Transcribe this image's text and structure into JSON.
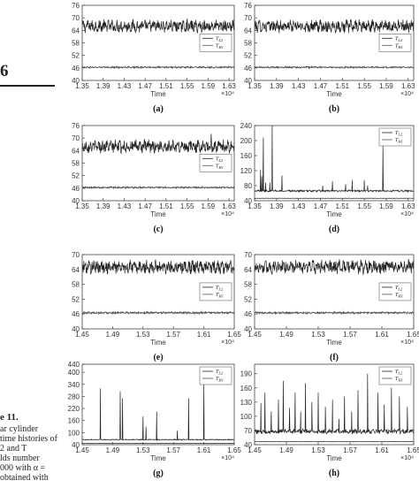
{
  "side": {
    "figure_number": "6",
    "caption_title": "e 11.",
    "caption_lines": [
      "ar cylinder",
      "time histories of",
      "2 and T",
      "lds number",
      "000 with α =",
      "obtained with"
    ]
  },
  "chart_data": [
    {
      "type": "line",
      "panel_label": "(a)",
      "xlabel": "Time",
      "x_multiplier": "×10⁴",
      "x_ticks": [
        "1.35",
        "1.39",
        "1.43",
        "1.47",
        "1.51",
        "1.55",
        "1.59",
        "1.63"
      ],
      "xlim": [
        1.35,
        1.64
      ],
      "y_ticks": [
        "40",
        "46",
        "52",
        "58",
        "64",
        "70",
        "76"
      ],
      "ylim": [
        40,
        76
      ],
      "series": [
        {
          "name": "T_L2",
          "mean": 66,
          "amplitude": 2.5,
          "spikes": []
        },
        {
          "name": "T_H1",
          "mean": 46.3,
          "amplitude": 0.3,
          "spikes": []
        }
      ],
      "legend": [
        {
          "base": "T",
          "sub": "L2"
        },
        {
          "base": "T",
          "sub": "H1"
        }
      ],
      "legend_position": "center-right"
    },
    {
      "type": "line",
      "panel_label": "(b)",
      "xlabel": "Time",
      "x_multiplier": "×10⁴",
      "x_ticks": [
        "1.35",
        "1.39",
        "1.43",
        "1.47",
        "1.51",
        "1.55",
        "1.59",
        "1.63"
      ],
      "xlim": [
        1.35,
        1.64
      ],
      "y_ticks": [
        "40",
        "46",
        "52",
        "58",
        "64",
        "70",
        "76"
      ],
      "ylim": [
        40,
        76
      ],
      "series": [
        {
          "name": "T_L2",
          "mean": 66,
          "amplitude": 2.5,
          "spikes": []
        },
        {
          "name": "T_H1",
          "mean": 46.3,
          "amplitude": 0.3,
          "spikes": []
        }
      ],
      "legend": [
        {
          "base": "T",
          "sub": "L2"
        },
        {
          "base": "T",
          "sub": "H1"
        }
      ],
      "legend_position": "center-right"
    },
    {
      "type": "line",
      "panel_label": "(c)",
      "xlabel": "Time",
      "x_multiplier": "×10⁴",
      "x_ticks": [
        "1.35",
        "1.39",
        "1.43",
        "1.47",
        "1.51",
        "1.55",
        "1.59",
        "1.63"
      ],
      "xlim": [
        1.35,
        1.64
      ],
      "y_ticks": [
        "40",
        "46",
        "52",
        "58",
        "64",
        "70",
        "76"
      ],
      "ylim": [
        40,
        76
      ],
      "series": [
        {
          "name": "T_L2",
          "mean": 66,
          "amplitude": 2.5,
          "spikes": [
            [
              1.596,
              72
            ]
          ]
        },
        {
          "name": "T_H1",
          "mean": 46.3,
          "amplitude": 0.3,
          "spikes": []
        }
      ],
      "legend": [
        {
          "base": "T",
          "sub": "L2"
        },
        {
          "base": "T",
          "sub": "H1"
        }
      ],
      "legend_position": "center-right"
    },
    {
      "type": "line",
      "panel_label": "(d)",
      "xlabel": "Time",
      "x_multiplier": "×10⁴",
      "x_ticks": [
        "1.35",
        "1.39",
        "1.43",
        "1.47",
        "1.51",
        "1.55",
        "1.59",
        "1.63"
      ],
      "xlim": [
        1.35,
        1.64
      ],
      "y_ticks": [
        "40",
        "80",
        "120",
        "160",
        "200",
        "240"
      ],
      "ylim": [
        40,
        240
      ],
      "series": [
        {
          "name": "T_L2",
          "mean": 66,
          "amplitude": 2,
          "spikes": [
            [
              1.361,
              122
            ],
            [
              1.363,
              105
            ],
            [
              1.366,
              208
            ],
            [
              1.37,
              88
            ],
            [
              1.378,
              88
            ],
            [
              1.382,
              240
            ],
            [
              1.4,
              107
            ],
            [
              1.474,
              80
            ],
            [
              1.492,
              92
            ],
            [
              1.516,
              84
            ],
            [
              1.528,
              95
            ],
            [
              1.55,
              95
            ],
            [
              1.556,
              80
            ],
            [
              1.584,
              185
            ]
          ]
        },
        {
          "name": "T_H1",
          "mean": 46.3,
          "amplitude": 0.3,
          "spikes": []
        }
      ],
      "legend": [
        {
          "base": "T",
          "sub": "L2"
        },
        {
          "base": "T",
          "sub": "H1"
        }
      ],
      "legend_position": "top-right"
    },
    {
      "type": "line",
      "panel_label": "(e)",
      "xlabel": "Time",
      "x_multiplier": "×10⁴",
      "x_ticks": [
        "1.45",
        "1.49",
        "1.53",
        "1.57",
        "1.61",
        "1.65"
      ],
      "xlim": [
        1.45,
        1.65
      ],
      "y_ticks": [
        "40",
        "46",
        "52",
        "58",
        "64",
        "70"
      ],
      "ylim": [
        40,
        70
      ],
      "series": [
        {
          "name": "T_L2",
          "mean": 65,
          "amplitude": 2.3,
          "spikes": []
        },
        {
          "name": "T_H1",
          "mean": 46.5,
          "amplitude": 0.3,
          "spikes": []
        }
      ],
      "legend": [
        {
          "base": "T",
          "sub": "L2"
        },
        {
          "base": "T",
          "sub": "H1"
        }
      ],
      "legend_position": "center-right"
    },
    {
      "type": "line",
      "panel_label": "(f)",
      "xlabel": "Time",
      "x_multiplier": "×10⁴",
      "x_ticks": [
        "1.45",
        "1.49",
        "1.53",
        "1.57",
        "1.61",
        "1.65"
      ],
      "xlim": [
        1.45,
        1.65
      ],
      "y_ticks": [
        "40",
        "46",
        "52",
        "58",
        "64",
        "70"
      ],
      "ylim": [
        40,
        70
      ],
      "series": [
        {
          "name": "T_L2",
          "mean": 65,
          "amplitude": 2.3,
          "spikes": []
        },
        {
          "name": "T_H1",
          "mean": 46.5,
          "amplitude": 0.3,
          "spikes": []
        }
      ],
      "legend": [
        {
          "base": "T",
          "sub": "L2"
        },
        {
          "base": "T",
          "sub": "H1"
        }
      ],
      "legend_position": "center-right"
    },
    {
      "type": "line",
      "panel_label": "(g)",
      "xlabel": "Time",
      "x_multiplier": "×10⁴",
      "x_ticks": [
        "1.45",
        "1.49",
        "1.53",
        "1.57",
        "1.61",
        "1.65"
      ],
      "xlim": [
        1.45,
        1.65
      ],
      "y_ticks": [
        "40",
        "100",
        "160",
        "220",
        "280",
        "340",
        "400",
        "440"
      ],
      "ylim": [
        40,
        440
      ],
      "series": [
        {
          "name": "T_L2",
          "mean": 65,
          "amplitude": 2,
          "spikes": [
            [
              1.474,
              320
            ],
            [
              1.5,
              305
            ],
            [
              1.503,
              270
            ],
            [
              1.53,
              180
            ],
            [
              1.534,
              130
            ],
            [
              1.548,
              205
            ],
            [
              1.575,
              110
            ],
            [
              1.59,
              270
            ],
            [
              1.61,
              340
            ]
          ]
        },
        {
          "name": "T_H1",
          "mean": 46.5,
          "amplitude": 0.3,
          "spikes": []
        }
      ],
      "legend": [
        {
          "base": "T",
          "sub": "L2"
        },
        {
          "base": "T",
          "sub": "H1"
        }
      ],
      "legend_position": "top-right"
    },
    {
      "type": "line",
      "panel_label": "(h)",
      "xlabel": "Time",
      "x_multiplier": "×10⁴",
      "x_ticks": [
        "1.45",
        "1.49",
        "1.53",
        "1.57",
        "1.61",
        "1.65"
      ],
      "xlim": [
        1.45,
        1.65
      ],
      "y_ticks": [
        "40",
        "70",
        "100",
        "130",
        "160",
        "190"
      ],
      "ylim": [
        40,
        210
      ],
      "series": [
        {
          "name": "T_L2",
          "mean": 68,
          "amplitude": 4,
          "spikes": [
            [
              1.458,
              128
            ],
            [
              1.463,
              150
            ],
            [
              1.471,
              110
            ],
            [
              1.48,
              135
            ],
            [
              1.486,
              175
            ],
            [
              1.494,
              118
            ],
            [
              1.501,
              150
            ],
            [
              1.508,
              110
            ],
            [
              1.514,
              170
            ],
            [
              1.522,
              130
            ],
            [
              1.53,
              150
            ],
            [
              1.539,
              120
            ],
            [
              1.548,
              135
            ],
            [
              1.556,
              95
            ],
            [
              1.563,
              142
            ],
            [
              1.572,
              110
            ],
            [
              1.58,
              155
            ],
            [
              1.592,
              190
            ],
            [
              1.605,
              150
            ],
            [
              1.613,
              125
            ],
            [
              1.622,
              160
            ],
            [
              1.632,
              142
            ],
            [
              1.642,
              120
            ]
          ]
        },
        {
          "name": "T_H1",
          "mean": 46.5,
          "amplitude": 0.3,
          "spikes": []
        }
      ],
      "legend": [
        {
          "base": "T",
          "sub": "L2"
        },
        {
          "base": "T",
          "sub": "H1"
        }
      ],
      "legend_position": "top-right"
    }
  ]
}
